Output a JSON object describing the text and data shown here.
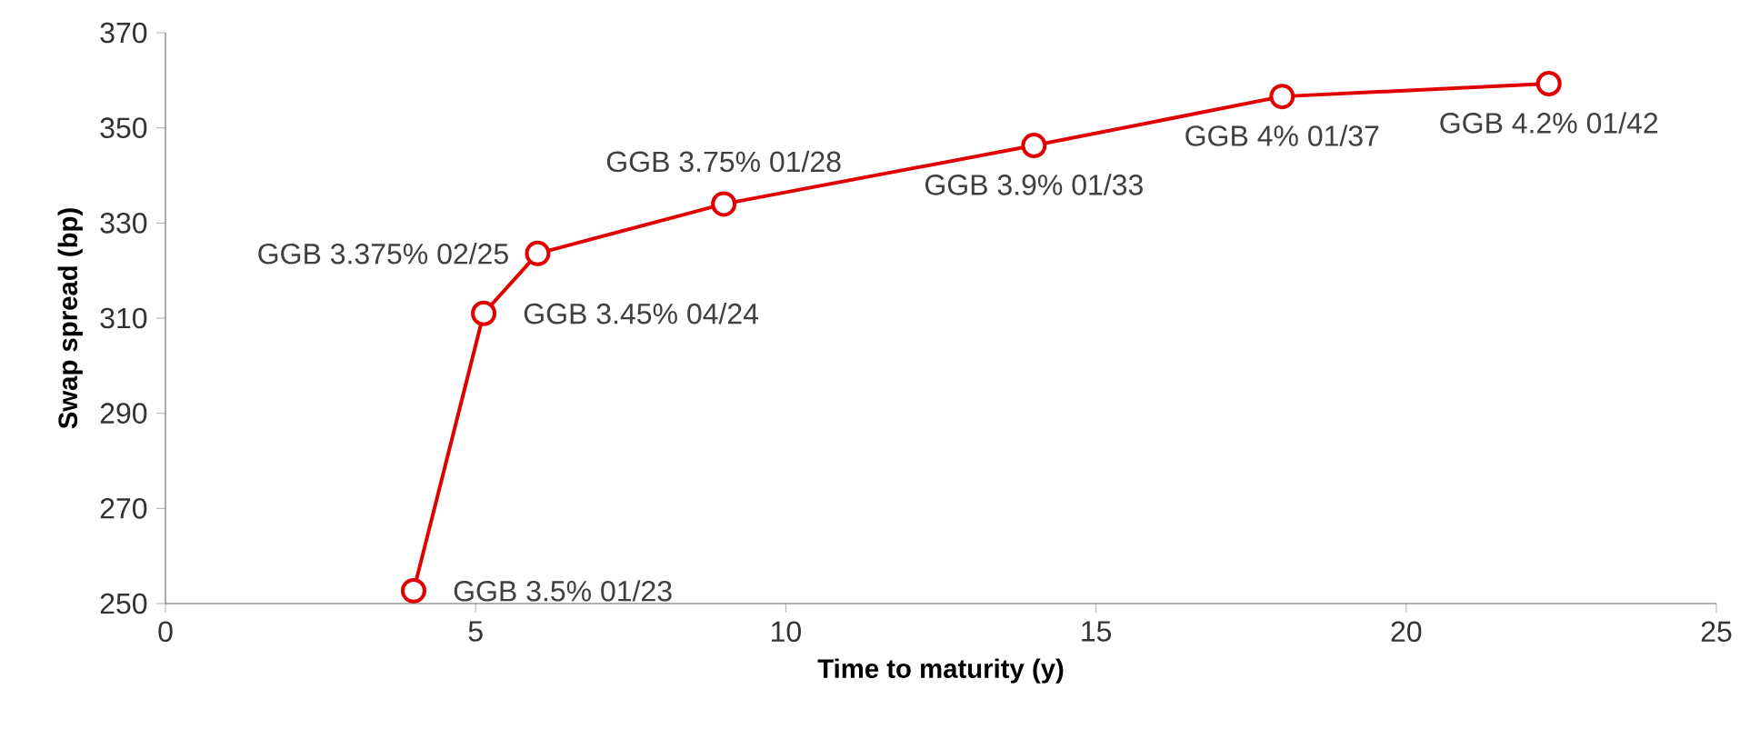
{
  "chart_data": {
    "type": "line",
    "xlabel": "Time to maturity (y)",
    "ylabel": "Swap spread (bp)",
    "x": [
      4,
      5.13,
      6,
      9,
      14,
      18,
      22.3
    ],
    "series": [
      {
        "color": "#e00000",
        "values": [
          252.7,
          311,
          323.6,
          334,
          346.3,
          356.6,
          359.3
        ]
      }
    ],
    "xlim": [
      0,
      25
    ],
    "xticks": [
      0,
      5,
      10,
      15,
      20,
      25
    ],
    "ylim": [
      250,
      370
    ],
    "yticks": [
      250,
      270,
      290,
      310,
      330,
      350,
      370
    ],
    "marker": "circle",
    "line_style": "solid",
    "grid": false,
    "annotations": [
      {
        "text": "GGB 3.5% 01/23",
        "x": 4,
        "y": 252.7
      },
      {
        "text": "GGB 3.45% 04/24",
        "x": 5.13,
        "y": 311
      },
      {
        "text": "GGB 3.375% 02/25",
        "x": 6,
        "y": 323.6
      },
      {
        "text": "GGB 3.75% 01/28",
        "x": 9,
        "y": 334
      },
      {
        "text": "GGB 3.9% 01/33",
        "x": 14,
        "y": 346.3
      },
      {
        "text": "GGB 4% 01/37",
        "x": 18,
        "y": 356.6
      },
      {
        "text": "GGB 4.2% 01/42",
        "x": 22.3,
        "y": 359.3
      }
    ]
  }
}
